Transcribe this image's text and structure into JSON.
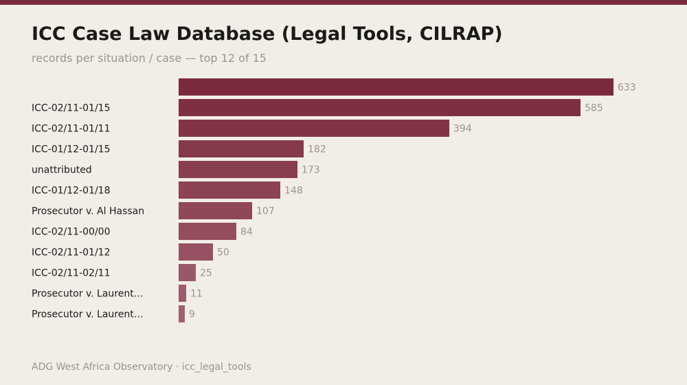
{
  "header": {
    "title": "ICC Case Law Database (Legal Tools, CILRAP)",
    "subtitle": "records per situation / case — top 12 of 15"
  },
  "footer": {
    "source": "ADG West Africa Observatory · icc_legal_tools"
  },
  "colors": {
    "bar_dark": "#7b2a3c",
    "bar_light": "#a06170",
    "label": "#1c1a17",
    "value_label": "#99958e"
  },
  "chart_data": {
    "type": "bar",
    "orientation": "horizontal",
    "title": "ICC Case Law Database (Legal Tools, CILRAP)",
    "subtitle": "records per situation / case — top 12 of 15",
    "categories": [
      "",
      "ICC-02/11-01/15",
      "ICC-02/11-01/11",
      "ICC-01/12-01/15",
      "unattributed",
      "ICC-01/12-01/18",
      "Prosecutor v. Al Hassan",
      "ICC-02/11-00/00",
      "ICC-02/11-01/12",
      "ICC-02/11-02/11",
      "Prosecutor v. Laurent…",
      "Prosecutor v. Laurent…"
    ],
    "values": [
      633,
      585,
      394,
      182,
      173,
      148,
      107,
      84,
      50,
      25,
      11,
      9
    ],
    "xlim": [
      0,
      633
    ],
    "grid": false,
    "legend": "none"
  }
}
